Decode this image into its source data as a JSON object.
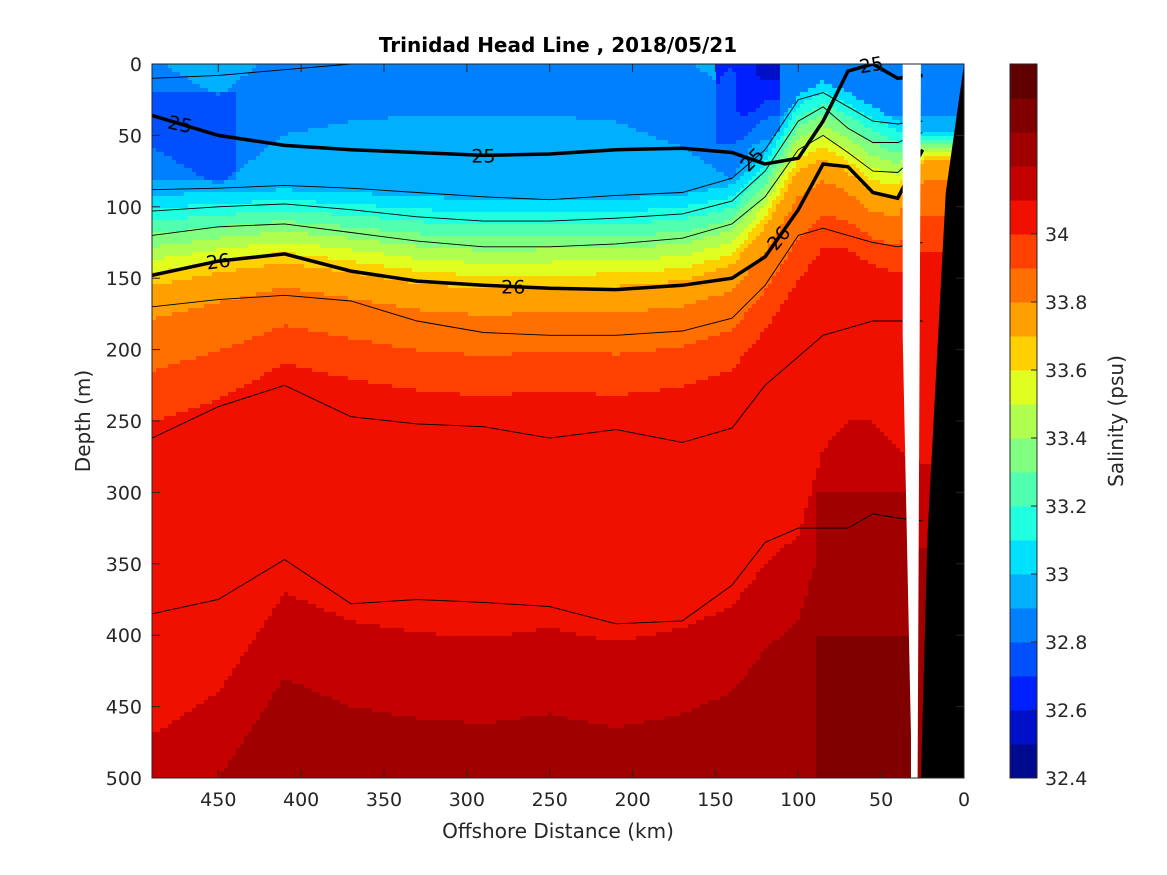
{
  "chart_data": {
    "type": "heatmap",
    "title": "Trinidad Head Line , 2018/05/21",
    "xlabel": "Offshore Distance (km)",
    "ylabel": "Depth (m)",
    "colorbar_label": "Salinity (psu)",
    "xlim": [
      490,
      0
    ],
    "ylim": [
      0,
      500
    ],
    "x_reversed": true,
    "y_reversed": true,
    "x_ticks": [
      450,
      400,
      350,
      300,
      250,
      200,
      150,
      100,
      50,
      0
    ],
    "x_tick_labels": [
      "450",
      "400",
      "350",
      "300",
      "250",
      "200",
      "150",
      "100",
      "50",
      "0"
    ],
    "y_ticks": [
      0,
      50,
      100,
      150,
      200,
      250,
      300,
      350,
      400,
      450,
      500
    ],
    "y_tick_labels": [
      "0",
      "50",
      "100",
      "150",
      "200",
      "250",
      "300",
      "350",
      "400",
      "450",
      "500"
    ],
    "colorbar": {
      "range": [
        32.4,
        34.5
      ],
      "ticks": [
        32.4,
        32.6,
        32.8,
        33,
        33.2,
        33.4,
        33.6,
        33.8,
        34
      ],
      "tick_labels": [
        "32.4",
        "32.6",
        "32.8",
        "33",
        "33.2",
        "33.4",
        "33.6",
        "33.8",
        "34"
      ],
      "levels": [
        32.4,
        32.5,
        32.6,
        32.7,
        32.8,
        32.9,
        33.0,
        33.1,
        33.2,
        33.3,
        33.4,
        33.5,
        33.6,
        33.7,
        33.8,
        33.9,
        34.0,
        34.1,
        34.2,
        34.3,
        34.4,
        34.5
      ],
      "colors": [
        "#000a8f",
        "#0010c8",
        "#0020ff",
        "#0050ff",
        "#0080ff",
        "#00b0ff",
        "#00e0ff",
        "#20ffdf",
        "#50ffaf",
        "#80ff80",
        "#b0ff50",
        "#e0ff20",
        "#ffd000",
        "#ffa000",
        "#ff7000",
        "#ff4000",
        "#f01000",
        "#c40000",
        "#a00000",
        "#800000",
        "#600000"
      ]
    },
    "salinity_field": {
      "stations_km": [
        490,
        450,
        410,
        370,
        330,
        290,
        250,
        210,
        170,
        140,
        120,
        100,
        85,
        70,
        55,
        40,
        25
      ],
      "depth_profile_m": [
        0,
        20,
        40,
        60,
        80,
        100,
        120,
        140,
        160,
        180,
        200,
        250,
        300,
        350,
        400,
        450,
        500
      ],
      "upper_halocline_depth_m": [
        92,
        90,
        88,
        90,
        93,
        95,
        96,
        95,
        92,
        85,
        62,
        22,
        12,
        20,
        30,
        40,
        48
      ],
      "mid_halocline_depth_m": [
        160,
        150,
        143,
        150,
        158,
        162,
        160,
        160,
        156,
        145,
        118,
        78,
        70,
        80,
        95,
        96,
        70
      ],
      "deep_water_depth_m": [
        470,
        440,
        370,
        390,
        398,
        402,
        395,
        405,
        395,
        380,
        350,
        330,
        270,
        250,
        250,
        270,
        280
      ],
      "surface_fresh_pool_depth_m": [
        30,
        60,
        20,
        10,
        5,
        5,
        5,
        10,
        30,
        55,
        10,
        0,
        0,
        5,
        5,
        5,
        5
      ]
    },
    "density_contours": [
      {
        "label": "25",
        "depth_m": [
          36,
          50,
          57,
          60,
          62,
          64,
          63,
          60,
          59,
          62,
          70,
          66,
          40,
          5,
          0,
          10,
          8
        ]
      },
      {
        "label": "26",
        "depth_m": [
          148,
          138,
          133,
          145,
          152,
          155,
          157,
          158,
          155,
          150,
          135,
          102,
          70,
          72,
          90,
          94,
          60
        ]
      }
    ],
    "thin_isopycnals": [
      {
        "depth_m": [
          10,
          8,
          4,
          0,
          0,
          0,
          0,
          0,
          0,
          0,
          0,
          0,
          0,
          0,
          0,
          0,
          0
        ]
      },
      {
        "depth_m": [
          88,
          87,
          85,
          87,
          90,
          93,
          95,
          92,
          90,
          80,
          60,
          25,
          20,
          30,
          40,
          42,
          40
        ]
      },
      {
        "depth_m": [
          103,
          100,
          98,
          102,
          107,
          110,
          110,
          108,
          105,
          96,
          75,
          40,
          30,
          45,
          55,
          55,
          48
        ]
      },
      {
        "depth_m": [
          120,
          114,
          112,
          118,
          124,
          128,
          128,
          126,
          122,
          112,
          93,
          60,
          50,
          62,
          75,
          76,
          60
        ]
      },
      {
        "depth_m": [
          170,
          165,
          162,
          166,
          180,
          188,
          190,
          190,
          187,
          178,
          155,
          120,
          115,
          120,
          125,
          128,
          125
        ]
      },
      {
        "depth_m": [
          262,
          240,
          225,
          247,
          252,
          254,
          262,
          256,
          265,
          255,
          225,
          205,
          190,
          185,
          180,
          180,
          180
        ]
      },
      {
        "depth_m": [
          385,
          375,
          347,
          378,
          375,
          377,
          380,
          392,
          390,
          365,
          335,
          325,
          325,
          325,
          315,
          318,
          320
        ]
      }
    ],
    "bathymetry": {
      "x_km": [
        5,
        4,
        0
      ],
      "top_depth_m": [
        500,
        500,
        0
      ],
      "white_gap_x_km": [
        26,
        28,
        32,
        37
      ]
    }
  }
}
